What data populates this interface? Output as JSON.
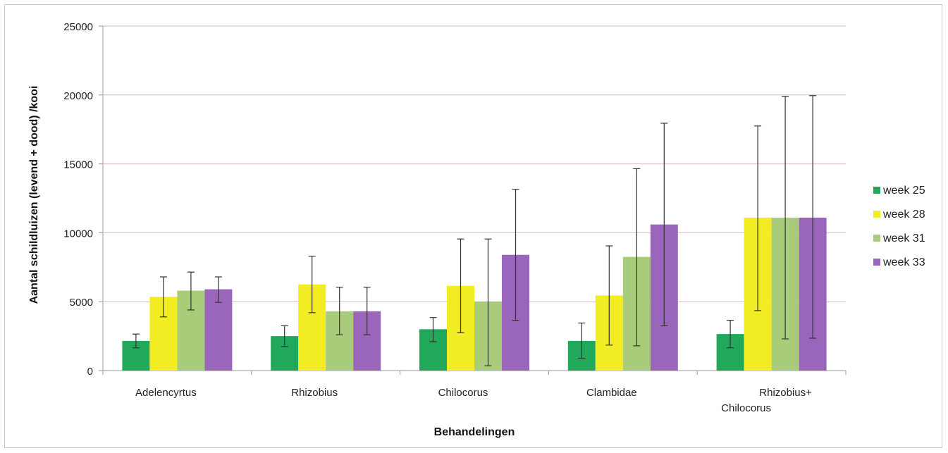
{
  "chart_data": {
    "type": "bar",
    "title": "",
    "xlabel": "Behandelingen",
    "ylabel": "Aantal schildluizen (levend + dood) /kooi",
    "ylim": [
      0,
      25000
    ],
    "yticks": [
      0,
      5000,
      10000,
      15000,
      20000,
      25000
    ],
    "grid": true,
    "legend_position": "right",
    "categories": [
      [
        "Adelencyrtus"
      ],
      [
        "Rhizobius"
      ],
      [
        "Chilocorus"
      ],
      [
        "Clambidae"
      ],
      [
        "Rhizobius+",
        "Chilocorus"
      ]
    ],
    "series": [
      {
        "name": "week 25",
        "color": "#22a85a",
        "values": [
          2150,
          2500,
          3000,
          2150,
          2650
        ],
        "error_low": [
          1650,
          1750,
          2100,
          900,
          1650
        ],
        "error_high": [
          2650,
          3250,
          3850,
          3450,
          3650
        ]
      },
      {
        "name": "week 28",
        "color": "#f2ec22",
        "values": [
          5350,
          6250,
          6150,
          5450,
          11100
        ],
        "error_low": [
          3900,
          4200,
          2750,
          1850,
          4350
        ],
        "error_high": [
          6800,
          8300,
          9550,
          9050,
          17750
        ]
      },
      {
        "name": "week 31",
        "color": "#a8cc7a",
        "values": [
          5800,
          4300,
          5000,
          8250,
          11100
        ],
        "error_low": [
          4400,
          2600,
          350,
          1800,
          2300
        ],
        "error_high": [
          7150,
          6050,
          9550,
          14650,
          19900
        ]
      },
      {
        "name": "week 33",
        "color": "#9966bb",
        "values": [
          5900,
          4300,
          8400,
          10600,
          11100
        ],
        "error_low": [
          4950,
          2600,
          3650,
          3250,
          2350
        ],
        "error_high": [
          6800,
          6050,
          13150,
          17950,
          19950
        ]
      }
    ]
  }
}
